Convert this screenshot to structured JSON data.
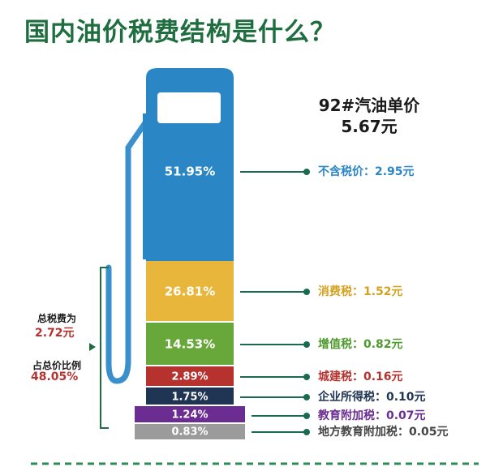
{
  "title": "国内油价税费结构是什么？",
  "price": {
    "label": "92#汽油单价",
    "value": "5.67元"
  },
  "tax_summary": {
    "total_label": "总税费为",
    "total_value": "2.72元",
    "share_label": "占总价比例",
    "share_value": "48.05%"
  },
  "colors": {
    "title": "#1f6e3f",
    "leader": "#1a6a4d",
    "bracket": "#1f6e3f",
    "pump_top": "#2a86c5",
    "red_text": "#b5322f"
  },
  "chart_data": {
    "type": "bar",
    "title": "国内油价税费结构是什么？",
    "total_price": 5.67,
    "unit": "元",
    "segments": [
      {
        "share": "51.95%",
        "label": "不含税价：2.95元",
        "amount": 2.95,
        "percent": 51.95,
        "color": "#2a86c5",
        "text_color": "#2a86c5"
      },
      {
        "share": "26.81%",
        "label": "消费税：1.52元",
        "amount": 1.52,
        "percent": 26.81,
        "color": "#e8b63a",
        "text_color": "#d4a21f"
      },
      {
        "share": "14.53%",
        "label": "增值税：0.82元",
        "amount": 0.82,
        "percent": 14.53,
        "color": "#68a83a",
        "text_color": "#4f9a2e"
      },
      {
        "share": "2.89%",
        "label": "城建税：0.16元",
        "amount": 0.16,
        "percent": 2.89,
        "color": "#b5322f",
        "text_color": "#b5322f"
      },
      {
        "share": "1.75%",
        "label": "企业所得税：0.10元",
        "amount": 0.1,
        "percent": 1.75,
        "color": "#1f3553",
        "text_color": "#1f3553"
      },
      {
        "share": "1.24%",
        "label": "教育附加税：0.07元",
        "amount": 0.07,
        "percent": 1.24,
        "color": "#6b2d91",
        "text_color": "#6b2d91"
      },
      {
        "share": "0.83%",
        "label": "地方教育附加税：0.05元",
        "amount": 0.05,
        "percent": 0.83,
        "color": "#9b9b9b",
        "text_color": "#444444"
      }
    ]
  }
}
